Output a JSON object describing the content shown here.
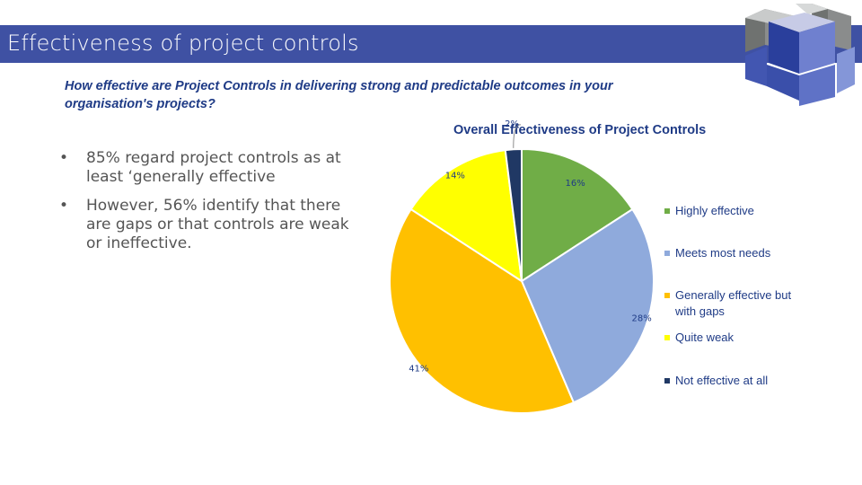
{
  "header": {
    "title": "Effectiveness of project controls"
  },
  "logo": {
    "icon": "stacked-cubes-logo"
  },
  "question": "How effective are Project Controls in delivering strong and predictable outcomes in your organisation's projects?",
  "bullets": [
    "85% regard project controls as at least ‘generally effective",
    "However, 56% identify that there are gaps or that controls are weak or ineffective."
  ],
  "bullet_symbol": "•",
  "chart_data": {
    "type": "pie",
    "title": "Overall Effectiveness of Project Controls",
    "categories": [
      "Highly effective",
      "Meets most needs",
      "Generally effective but with gaps",
      "Quite weak",
      "Not effective at all"
    ],
    "values": [
      16,
      28,
      41,
      14,
      2
    ],
    "labels": [
      "16%",
      "28%",
      "41%",
      "14%",
      "2%"
    ],
    "colors": [
      "#70ad47",
      "#8faadc",
      "#ffc000",
      "#ffff00",
      "#203864"
    ],
    "start_angle_deg": 0,
    "direction": "clockwise",
    "legend_position": "right"
  }
}
